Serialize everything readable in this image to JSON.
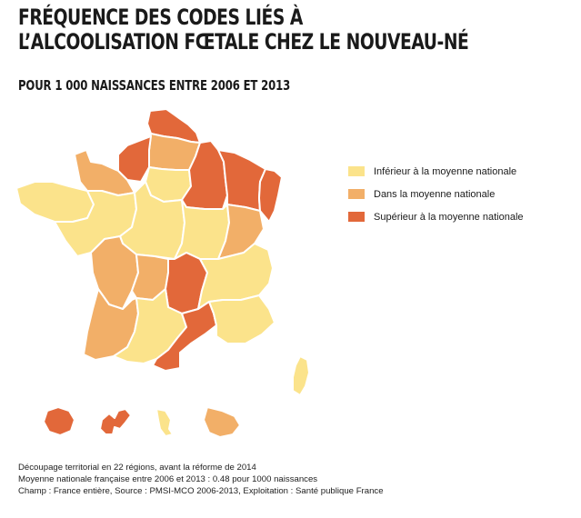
{
  "title": {
    "line1": "FRÉQUENCE DES CODES LIÉS À",
    "line2": "L’ALCOOLISATION FŒTALE CHEZ LE NOUVEAU-NÉ"
  },
  "subtitle": "POUR 1 000 NAISSANCES ENTRE 2006 ET 2013",
  "colors": {
    "inferieur": "#fbe38b",
    "dans": "#f2af68",
    "superieur": "#e2683a",
    "border": "#ffffff"
  },
  "legend": [
    {
      "key": "inferieur",
      "label": "Inférieur à la moyenne nationale"
    },
    {
      "key": "dans",
      "label": "Dans la moyenne nationale"
    },
    {
      "key": "superieur",
      "label": "Supérieur à la moyenne nationale"
    }
  ],
  "regions": [
    {
      "key": "nord-pas-de-calais",
      "category": "superieur"
    },
    {
      "key": "picardie",
      "category": "dans"
    },
    {
      "key": "haute-normandie",
      "category": "superieur"
    },
    {
      "key": "basse-normandie",
      "category": "dans"
    },
    {
      "key": "bretagne",
      "category": "inferieur"
    },
    {
      "key": "pays-de-la-loire",
      "category": "inferieur"
    },
    {
      "key": "centre",
      "category": "inferieur"
    },
    {
      "key": "ile-de-france",
      "category": "inferieur"
    },
    {
      "key": "champagne-ardenne",
      "category": "superieur"
    },
    {
      "key": "lorraine",
      "category": "superieur"
    },
    {
      "key": "alsace",
      "category": "superieur"
    },
    {
      "key": "bourgogne",
      "category": "inferieur"
    },
    {
      "key": "franche-comte",
      "category": "dans"
    },
    {
      "key": "poitou-charentes",
      "category": "dans"
    },
    {
      "key": "limousin",
      "category": "dans"
    },
    {
      "key": "auvergne",
      "category": "superieur"
    },
    {
      "key": "rhone-alpes",
      "category": "inferieur"
    },
    {
      "key": "aquitaine",
      "category": "dans"
    },
    {
      "key": "midi-pyrenees",
      "category": "inferieur"
    },
    {
      "key": "languedoc-roussillon",
      "category": "superieur"
    },
    {
      "key": "provence-alpes-cote-d-azur",
      "category": "inferieur"
    },
    {
      "key": "corse",
      "category": "inferieur"
    },
    {
      "key": "la-reunion",
      "category": "superieur"
    },
    {
      "key": "guadeloupe",
      "category": "superieur"
    },
    {
      "key": "martinique",
      "category": "inferieur"
    },
    {
      "key": "guyane",
      "category": "dans"
    }
  ],
  "footer": {
    "line1": "Découpage territorial en 22 régions, avant la réforme de 2014",
    "line2": "Moyenne nationale française entre 2006 et 2013 : 0.48 pour 1000 naissances",
    "line3": "Champ : France entière, Source : PMSI-MCO 2006-2013, Exploitation : Santé publique France"
  }
}
